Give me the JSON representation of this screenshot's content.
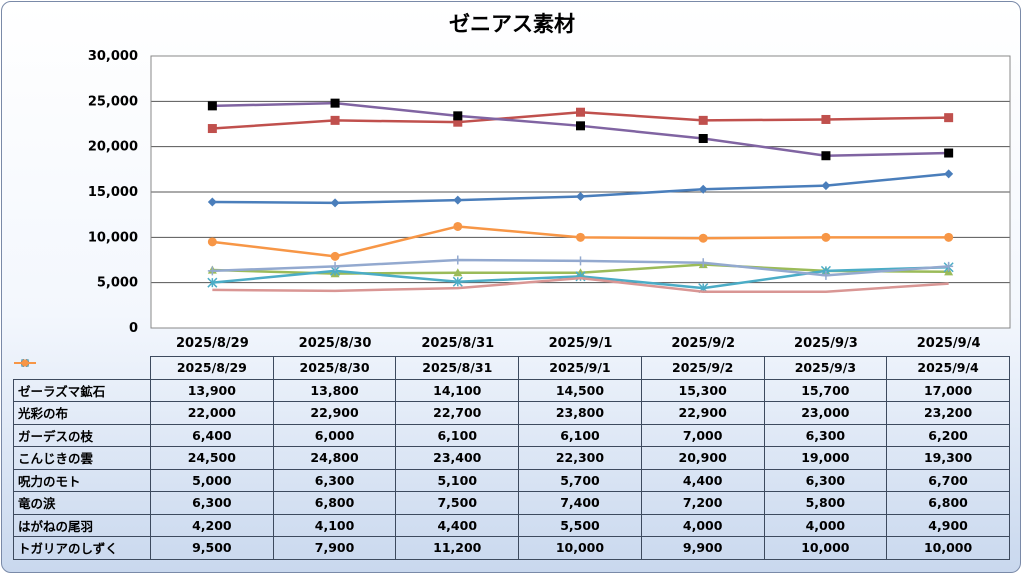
{
  "chart_data": {
    "type": "line",
    "title": "ゼニアス素材",
    "categories": [
      "2025/8/29",
      "2025/8/30",
      "2025/8/31",
      "2025/9/1",
      "2025/9/2",
      "2025/9/3",
      "2025/9/4"
    ],
    "ylim": [
      0,
      30000
    ],
    "yticks": [
      "0",
      "5,000",
      "10,000",
      "15,000",
      "20,000",
      "25,000",
      "30,000"
    ],
    "grid": true,
    "legend": "data table below chart",
    "series": [
      {
        "name": "ゼーラズマ鉱石",
        "color": "#4a7ebb",
        "marker": "diamond",
        "values": [
          13900,
          13800,
          14100,
          14500,
          15300,
          15700,
          17000
        ],
        "labels": [
          "13,900",
          "13,800",
          "14,100",
          "14,500",
          "15,300",
          "15,700",
          "17,000"
        ]
      },
      {
        "name": "光彩の布",
        "color": "#c0504d",
        "marker": "square",
        "values": [
          22000,
          22900,
          22700,
          23800,
          22900,
          23000,
          23200
        ],
        "labels": [
          "22,000",
          "22,900",
          "22,700",
          "23,800",
          "22,900",
          "23,000",
          "23,200"
        ]
      },
      {
        "name": "ガーデスの枝",
        "color": "#9bbb59",
        "marker": "triangle",
        "values": [
          6400,
          6000,
          6100,
          6100,
          7000,
          6300,
          6200
        ],
        "labels": [
          "6,400",
          "6,000",
          "6,100",
          "6,100",
          "7,000",
          "6,300",
          "6,200"
        ]
      },
      {
        "name": "こんじきの雲",
        "color": "#8064a2",
        "markerColor": "#000000",
        "marker": "square",
        "values": [
          24500,
          24800,
          23400,
          22300,
          20900,
          19000,
          19300
        ],
        "labels": [
          "24,500",
          "24,800",
          "23,400",
          "22,300",
          "20,900",
          "19,000",
          "19,300"
        ]
      },
      {
        "name": "呪力のモト",
        "color": "#4bacc6",
        "marker": "star",
        "values": [
          5000,
          6300,
          5100,
          5700,
          4400,
          6300,
          6700
        ],
        "labels": [
          "5,000",
          "6,300",
          "5,100",
          "5,700",
          "4,400",
          "6,300",
          "6,700"
        ]
      },
      {
        "name": "竜の涙",
        "color": "#93a9cf",
        "marker": "plus",
        "values": [
          6300,
          6800,
          7500,
          7400,
          7200,
          5800,
          6800
        ],
        "labels": [
          "6,300",
          "6,800",
          "7,500",
          "7,400",
          "7,200",
          "5,800",
          "6,800"
        ]
      },
      {
        "name": "はがねの尾羽",
        "color": "#d99694",
        "marker": "none",
        "values": [
          4200,
          4100,
          4400,
          5500,
          4000,
          4000,
          4900
        ],
        "labels": [
          "4,200",
          "4,100",
          "4,400",
          "5,500",
          "4,000",
          "4,000",
          "4,900"
        ]
      },
      {
        "name": "トガリアのしずく",
        "color": "#f79646",
        "marker": "circle",
        "values": [
          9500,
          7900,
          11200,
          10000,
          9900,
          10000,
          10000
        ],
        "labels": [
          "9,500",
          "7,900",
          "11,200",
          "10,000",
          "9,900",
          "10,000",
          "10,000"
        ]
      }
    ]
  }
}
